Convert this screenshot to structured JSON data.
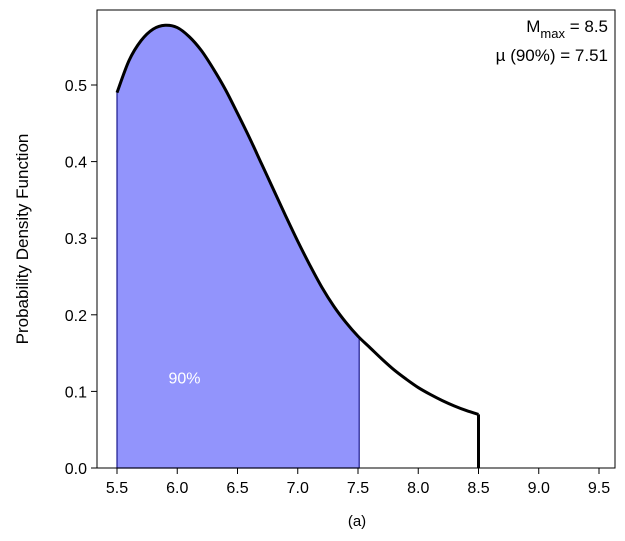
{
  "chart_data": {
    "type": "area",
    "title": "",
    "xlabel": "",
    "ylabel": "Probability Density Function",
    "xlim": [
      5.5,
      9.5
    ],
    "ylim": [
      0.0,
      0.58
    ],
    "x_ticks": [
      "5.5",
      "6.0",
      "6.5",
      "7.0",
      "7.5",
      "8.0",
      "8.5",
      "9.0",
      "9.5"
    ],
    "y_ticks": [
      "0.0",
      "0.1",
      "0.2",
      "0.3",
      "0.4",
      "0.5"
    ],
    "grid": false,
    "series": [
      {
        "x": [
          5.5,
          5.6,
          5.7,
          5.8,
          5.9,
          6.0,
          6.1,
          6.2,
          6.3,
          6.4,
          6.5,
          6.6,
          6.7,
          6.8,
          6.9,
          7.0,
          7.1,
          7.2,
          7.3,
          7.4,
          7.5,
          7.6,
          7.7,
          7.8,
          7.9,
          8.0,
          8.1,
          8.2,
          8.3,
          8.4,
          8.5
        ],
        "y": [
          0.49,
          0.532,
          0.558,
          0.573,
          0.578,
          0.575,
          0.563,
          0.545,
          0.521,
          0.494,
          0.463,
          0.431,
          0.397,
          0.363,
          0.329,
          0.296,
          0.265,
          0.236,
          0.211,
          0.19,
          0.172,
          0.157,
          0.142,
          0.128,
          0.116,
          0.105,
          0.096,
          0.088,
          0.081,
          0.075,
          0.07
        ]
      }
    ],
    "shaded_region": {
      "x_from": 5.5,
      "x_to": 7.51,
      "label": "90%",
      "color": "#9294fc"
    },
    "annotations": {
      "mmax_base": "M",
      "mmax_sub": "max",
      "mmax_value": " = 8.5",
      "mu_text": "µ (90%) = 7.51"
    }
  },
  "caption": "(a)",
  "colors": {
    "curve": "#000000",
    "fill": "#9294fc",
    "fill_edge": "#1a1a8c",
    "frame": "#000000"
  }
}
